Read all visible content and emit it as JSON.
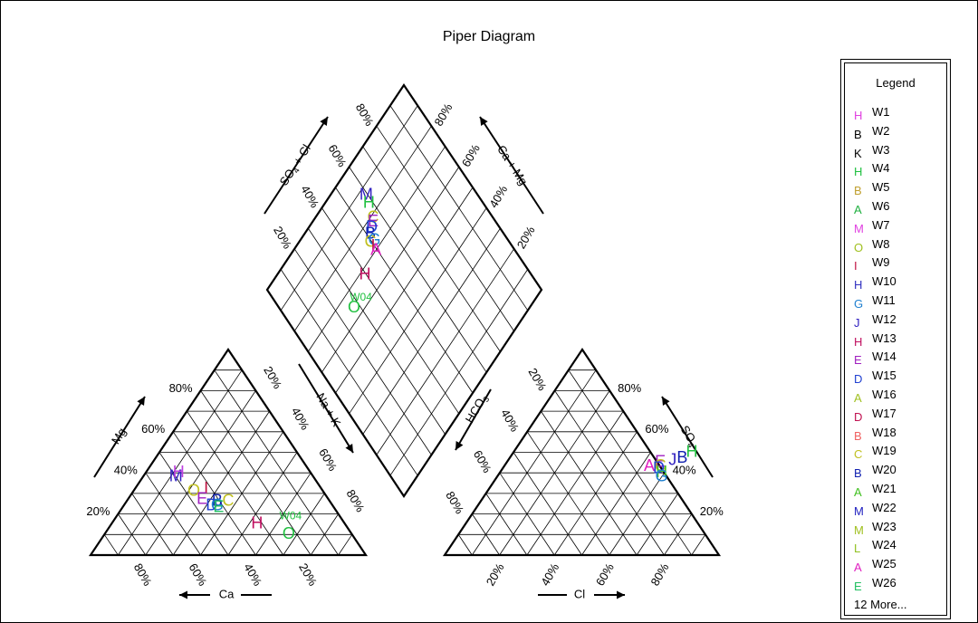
{
  "chart_data": {
    "type": "scatter",
    "title": "Piper Diagram",
    "axes": {
      "mg": "Mg",
      "ca": "Ca",
      "nak": "Na + K",
      "hco3": "HCO3",
      "cl": "Cl",
      "so4": "SO4",
      "so4cl": "SO4 + Cl",
      "camg": "Ca + Mg"
    },
    "tick_labels": [
      "20%",
      "40%",
      "60%",
      "80%"
    ],
    "legend": {
      "title": "Legend",
      "items": [
        {
          "symbol": "H",
          "name": "W1",
          "color": "#e040e0"
        },
        {
          "symbol": "B",
          "name": "W2",
          "color": "#000000"
        },
        {
          "symbol": "K",
          "name": "W3",
          "color": "#000000"
        },
        {
          "symbol": "H",
          "name": "W4",
          "color": "#20c040"
        },
        {
          "symbol": "B",
          "name": "W5",
          "color": "#c0a030"
        },
        {
          "symbol": "A",
          "name": "W6",
          "color": "#20b040"
        },
        {
          "symbol": "M",
          "name": "W7",
          "color": "#e040e0"
        },
        {
          "symbol": "O",
          "name": "W8",
          "color": "#a0c020"
        },
        {
          "symbol": "I",
          "name": "W9",
          "color": "#c01040"
        },
        {
          "symbol": "H",
          "name": "W10",
          "color": "#3030c0"
        },
        {
          "symbol": "G",
          "name": "W11",
          "color": "#2080d0"
        },
        {
          "symbol": "J",
          "name": "W12",
          "color": "#3020c0"
        },
        {
          "symbol": "H",
          "name": "W13",
          "color": "#c01060"
        },
        {
          "symbol": "E",
          "name": "W14",
          "color": "#a020c0"
        },
        {
          "symbol": "D",
          "name": "W15",
          "color": "#2040d0"
        },
        {
          "symbol": "A",
          "name": "W16",
          "color": "#a0c020"
        },
        {
          "symbol": "D",
          "name": "W17",
          "color": "#c01050"
        },
        {
          "symbol": "B",
          "name": "W18",
          "color": "#f06060"
        },
        {
          "symbol": "C",
          "name": "W19",
          "color": "#c0c020"
        },
        {
          "symbol": "B",
          "name": "W20",
          "color": "#1020b0"
        },
        {
          "symbol": "A",
          "name": "W21",
          "color": "#40c020"
        },
        {
          "symbol": "M",
          "name": "W22",
          "color": "#2020c0"
        },
        {
          "symbol": "M",
          "name": "W23",
          "color": "#a0c020"
        },
        {
          "symbol": "L",
          "name": "W24",
          "color": "#90c020"
        },
        {
          "symbol": "A",
          "name": "W25",
          "color": "#e020c0"
        },
        {
          "symbol": "E",
          "name": "W26",
          "color": "#20c060"
        }
      ],
      "more": "12 More..."
    },
    "cation_points": [
      {
        "label": "M",
        "color": "#3020c0",
        "mg": 38,
        "ca": 50
      },
      {
        "label": "H",
        "color": "#c040e0",
        "mg": 40,
        "ca": 48
      },
      {
        "label": "O",
        "color": "#c0c020",
        "mg": 31,
        "ca": 47
      },
      {
        "label": "I",
        "color": "#c01040",
        "mg": 32,
        "ca": 42
      },
      {
        "label": "E",
        "color": "#a020c0",
        "mg": 27,
        "ca": 46
      },
      {
        "label": "C",
        "color": "#c0c020",
        "mg": 26,
        "ca": 37
      },
      {
        "label": "B",
        "color": "#1020b0",
        "mg": 26,
        "ca": 41
      },
      {
        "label": "G",
        "color": "#2080d0",
        "mg": 24,
        "ca": 42
      },
      {
        "label": "D",
        "color": "#2040d0",
        "mg": 24,
        "ca": 44
      },
      {
        "label": "E",
        "color": "#20c060",
        "mg": 23,
        "ca": 42
      },
      {
        "label": "H",
        "color": "#c01060",
        "mg": 15,
        "ca": 32
      },
      {
        "label": "O",
        "color": "#20c040",
        "mg": 10,
        "ca": 23
      }
    ],
    "anion_points": [
      {
        "label": "H",
        "color": "#20c040",
        "cl": 65,
        "so4": 50
      },
      {
        "label": "B",
        "color": "#1020b0",
        "cl": 63,
        "so4": 47
      },
      {
        "label": "J",
        "color": "#3020c0",
        "cl": 60,
        "so4": 46
      },
      {
        "label": "E",
        "color": "#a020c0",
        "cl": 56,
        "so4": 45
      },
      {
        "label": "A",
        "color": "#e020c0",
        "cl": 53,
        "so4": 43
      },
      {
        "label": "C",
        "color": "#c0c020",
        "cl": 57,
        "so4": 43
      },
      {
        "label": "D",
        "color": "#2040d0",
        "cl": 57,
        "so4": 42
      },
      {
        "label": "H",
        "color": "#40c020",
        "cl": 59,
        "so4": 40
      },
      {
        "label": "G",
        "color": "#2080d0",
        "cl": 60,
        "so4": 38
      }
    ],
    "diamond_points": [
      {
        "label": "M",
        "color": "#3020c0",
        "so4cl": 60,
        "camg": 87
      },
      {
        "label": "H",
        "color": "#20c040",
        "so4cl": 59,
        "camg": 84
      },
      {
        "label": "C",
        "color": "#c0c020",
        "so4cl": 57,
        "camg": 79
      },
      {
        "label": "E",
        "color": "#a020c0",
        "so4cl": 56,
        "camg": 78
      },
      {
        "label": "D",
        "color": "#2040d0",
        "so4cl": 54,
        "camg": 77
      },
      {
        "label": "B",
        "color": "#1020b0",
        "so4cl": 52,
        "camg": 76
      },
      {
        "label": "C",
        "color": "#c0c020",
        "so4cl": 50,
        "camg": 74
      },
      {
        "label": "G",
        "color": "#2080d0",
        "so4cl": 52,
        "camg": 73
      },
      {
        "label": "I",
        "color": "#c01040",
        "so4cl": 50,
        "camg": 72
      },
      {
        "label": "A",
        "color": "#e020c0",
        "so4cl": 50,
        "camg": 70
      },
      {
        "label": "H",
        "color": "#c01060",
        "so4cl": 40,
        "camg": 68
      },
      {
        "label": "W04",
        "color": "#20c040",
        "so4cl": 33,
        "camg": 64
      },
      {
        "label": "O",
        "color": "#20c040",
        "so4cl": 28,
        "camg": 64
      }
    ]
  }
}
